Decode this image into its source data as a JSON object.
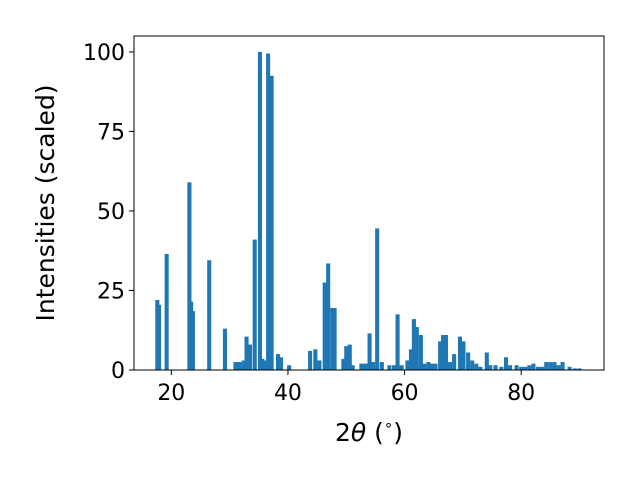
{
  "chart_data": {
    "type": "bar",
    "xlabel_main": "2",
    "xlabel_symbol": "θ",
    "xlabel_unit_open": " (",
    "xlabel_unit_degree": "∘",
    "xlabel_unit_close": ")",
    "ylabel": "Intensities (scaled)",
    "xlim": [
      13.6,
      94.2
    ],
    "ylim": [
      0,
      105
    ],
    "xticks": [
      20,
      40,
      60,
      80
    ],
    "yticks": [
      0,
      25,
      50,
      75,
      100
    ],
    "bar_color": "#1f77b4",
    "bar_width": 0.7,
    "grid": false,
    "bars": [
      [
        17.6,
        22
      ],
      [
        17.9,
        20.5
      ],
      [
        19.2,
        36.5
      ],
      [
        23.1,
        59
      ],
      [
        23.4,
        21.5
      ],
      [
        23.7,
        18.5
      ],
      [
        26.5,
        34.5
      ],
      [
        29.2,
        13
      ],
      [
        31.0,
        2.5
      ],
      [
        31.7,
        2.5
      ],
      [
        32.4,
        3
      ],
      [
        32.9,
        10.5
      ],
      [
        33.5,
        8
      ],
      [
        34.3,
        41
      ],
      [
        35.2,
        100
      ],
      [
        35.6,
        3.5
      ],
      [
        36.2,
        3
      ],
      [
        36.6,
        99.5
      ],
      [
        37.2,
        92.5
      ],
      [
        38.3,
        5
      ],
      [
        38.8,
        4
      ],
      [
        40.2,
        1.5
      ],
      [
        43.8,
        6
      ],
      [
        44.7,
        6.5
      ],
      [
        45.4,
        3
      ],
      [
        46.3,
        27.5
      ],
      [
        46.9,
        33.5
      ],
      [
        47.6,
        19.5
      ],
      [
        48.0,
        19.5
      ],
      [
        49.5,
        3.5
      ],
      [
        50.0,
        7.5
      ],
      [
        50.6,
        8
      ],
      [
        51.1,
        1.5
      ],
      [
        52.6,
        2
      ],
      [
        53.3,
        2
      ],
      [
        54.0,
        11.5
      ],
      [
        54.6,
        2.5
      ],
      [
        55.3,
        44.5
      ],
      [
        56.1,
        2.5
      ],
      [
        57.4,
        1.5
      ],
      [
        58.2,
        1.5
      ],
      [
        58.8,
        17.5
      ],
      [
        59.5,
        1.5
      ],
      [
        60.5,
        3
      ],
      [
        61.1,
        6.5
      ],
      [
        61.6,
        16
      ],
      [
        62.1,
        13.5
      ],
      [
        62.8,
        11
      ],
      [
        63.4,
        2
      ],
      [
        64.1,
        2.5
      ],
      [
        64.7,
        2
      ],
      [
        65.3,
        2
      ],
      [
        66.1,
        9
      ],
      [
        66.6,
        11
      ],
      [
        67.1,
        11
      ],
      [
        67.8,
        2.5
      ],
      [
        68.5,
        5
      ],
      [
        69.5,
        10.5
      ],
      [
        70.1,
        9
      ],
      [
        70.9,
        5.5
      ],
      [
        71.6,
        3
      ],
      [
        72.3,
        2
      ],
      [
        73.0,
        1
      ],
      [
        74.1,
        5.5
      ],
      [
        74.7,
        1.5
      ],
      [
        75.6,
        1.5
      ],
      [
        76.6,
        1
      ],
      [
        77.4,
        4
      ],
      [
        78.1,
        1.5
      ],
      [
        79.2,
        1.5
      ],
      [
        80.0,
        1
      ],
      [
        80.7,
        1
      ],
      [
        81.4,
        1.5
      ],
      [
        82.1,
        2
      ],
      [
        82.9,
        1
      ],
      [
        83.6,
        1
      ],
      [
        84.3,
        2.5
      ],
      [
        85.0,
        2.5
      ],
      [
        85.7,
        2.5
      ],
      [
        86.4,
        1.5
      ],
      [
        87.1,
        2.5
      ],
      [
        88.3,
        1
      ],
      [
        89.2,
        0.5
      ],
      [
        90.0,
        0.5
      ]
    ]
  }
}
